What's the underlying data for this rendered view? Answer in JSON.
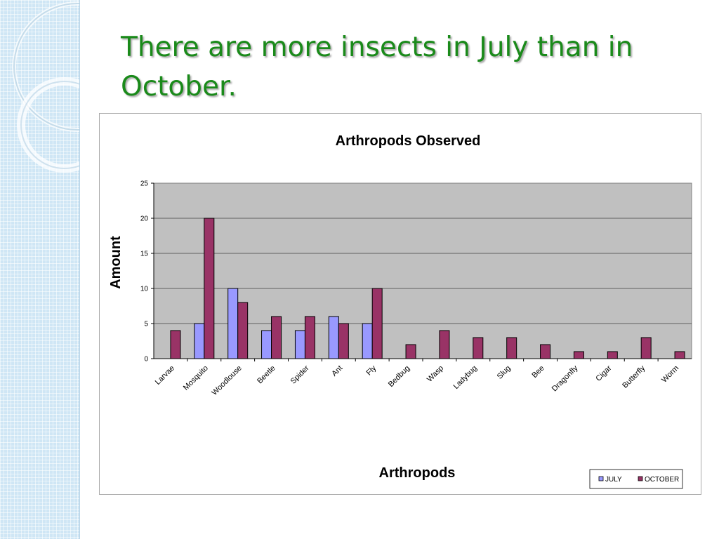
{
  "slide": {
    "title": "There are more insects in July than in October."
  },
  "colors": {
    "title": "#1a8a1a",
    "plot_area": "#c0c0c0",
    "july": "#9999ff",
    "october": "#993366"
  },
  "chart_data": {
    "type": "bar",
    "title": "Arthropods Observed",
    "xlabel": "Arthropods",
    "ylabel": "Amount",
    "ylim": [
      0,
      25
    ],
    "yticks": [
      0,
      5,
      10,
      15,
      20,
      25
    ],
    "grid": true,
    "legend_position": "bottom-right",
    "categories": [
      "Larvae",
      "Mosquito",
      "Woodlouse",
      "Beetle",
      "Spider",
      "Ant",
      "Fly",
      "Bedbug",
      "Wasp",
      "Ladybug",
      "Slug",
      "Bee",
      "Dragonfly",
      "Cigar",
      "Butterfly",
      "Worm"
    ],
    "series": [
      {
        "name": "JULY",
        "color": "#9999ff",
        "values": [
          0,
          5,
          10,
          4,
          4,
          6,
          5,
          0,
          0,
          0,
          0,
          0,
          0,
          0,
          0,
          0
        ]
      },
      {
        "name": "OCTOBER",
        "color": "#993366",
        "values": [
          4,
          20,
          8,
          6,
          6,
          5,
          10,
          2,
          4,
          3,
          3,
          2,
          1,
          1,
          3,
          1
        ]
      }
    ]
  }
}
